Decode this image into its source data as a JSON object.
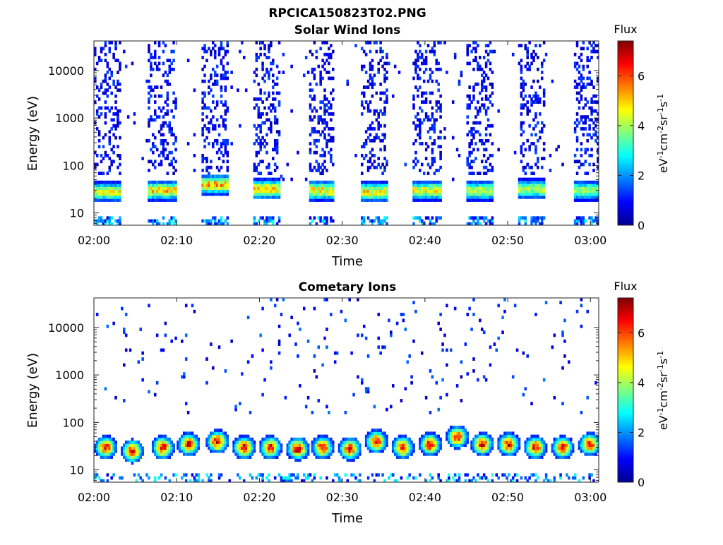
{
  "figure_title": "RPCICA150823T02.PNG",
  "chart_data": [
    {
      "type": "heatmap",
      "title": "Solar Wind Ions",
      "xlabel": "Time",
      "ylabel": "Energy (eV)",
      "x_ticks": [
        "02:00",
        "02:10",
        "02:20",
        "02:30",
        "02:40",
        "02:50",
        "03:00"
      ],
      "xlim_minutes": [
        0,
        61
      ],
      "y_ticks": [
        10,
        100,
        1000,
        10000
      ],
      "y_tick_labels": [
        "10",
        "100",
        "1000",
        "10000"
      ],
      "ylim": [
        5.5,
        42000
      ],
      "y_scale": "log",
      "colorbar": {
        "title": "Flux",
        "label": "eV-1cm-2sr-1s-1",
        "range": [
          0,
          7.4
        ],
        "ticks": [
          "0",
          "2",
          "4",
          "6"
        ],
        "colormap": "jet"
      },
      "bursts": [
        {
          "start_min": 0.0,
          "end_min": 3.2,
          "peak_energy_ev": 28,
          "peak_flux": 4.8
        },
        {
          "start_min": 6.5,
          "end_min": 9.8,
          "peak_energy_ev": 30,
          "peak_flux": 5.3
        },
        {
          "start_min": 12.8,
          "end_min": 16.2,
          "peak_energy_ev": 40,
          "peak_flux": 5.6
        },
        {
          "start_min": 19.2,
          "end_min": 22.5,
          "peak_energy_ev": 32,
          "peak_flux": 5.4
        },
        {
          "start_min": 25.8,
          "end_min": 29.0,
          "peak_energy_ev": 30,
          "peak_flux": 5.2
        },
        {
          "start_min": 32.2,
          "end_min": 35.5,
          "peak_energy_ev": 28,
          "peak_flux": 5.0
        },
        {
          "start_min": 38.5,
          "end_min": 41.8,
          "peak_energy_ev": 30,
          "peak_flux": 4.9
        },
        {
          "start_min": 44.8,
          "end_min": 48.2,
          "peak_energy_ev": 30,
          "peak_flux": 4.6
        },
        {
          "start_min": 51.2,
          "end_min": 54.5,
          "peak_energy_ev": 32,
          "peak_flux": 4.5
        },
        {
          "start_min": 57.8,
          "end_min": 61.0,
          "peak_energy_ev": 30,
          "peak_flux": 4.4
        }
      ]
    },
    {
      "type": "heatmap",
      "title": "Cometary Ions",
      "xlabel": "Time",
      "ylabel": "Energy (eV)",
      "x_ticks": [
        "02:00",
        "02:10",
        "02:20",
        "02:30",
        "02:40",
        "02:50",
        "03:00"
      ],
      "xlim_minutes": [
        0,
        61
      ],
      "y_ticks": [
        10,
        100,
        1000,
        10000
      ],
      "y_tick_labels": [
        "10",
        "100",
        "1000",
        "10000"
      ],
      "ylim": [
        5.5,
        42000
      ],
      "y_scale": "log",
      "colorbar": {
        "title": "Flux",
        "label": "eV-1cm-2sr-1s-1",
        "range": [
          0,
          7.4
        ],
        "ticks": [
          "0",
          "2",
          "4",
          "6"
        ],
        "colormap": "jet"
      },
      "bursts": [
        {
          "center_min": 1.3,
          "peak_energy_ev": 30,
          "peak_flux": 6.8
        },
        {
          "center_min": 4.5,
          "peak_energy_ev": 25,
          "peak_flux": 6.9
        },
        {
          "center_min": 8.2,
          "peak_energy_ev": 30,
          "peak_flux": 7.0
        },
        {
          "center_min": 11.3,
          "peak_energy_ev": 35,
          "peak_flux": 6.9
        },
        {
          "center_min": 14.8,
          "peak_energy_ev": 40,
          "peak_flux": 7.1
        },
        {
          "center_min": 18.0,
          "peak_energy_ev": 30,
          "peak_flux": 7.0
        },
        {
          "center_min": 21.2,
          "peak_energy_ev": 30,
          "peak_flux": 6.9
        },
        {
          "center_min": 24.5,
          "peak_energy_ev": 28,
          "peak_flux": 7.1
        },
        {
          "center_min": 27.5,
          "peak_energy_ev": 30,
          "peak_flux": 6.9
        },
        {
          "center_min": 30.8,
          "peak_energy_ev": 28,
          "peak_flux": 6.9
        },
        {
          "center_min": 34.0,
          "peak_energy_ev": 40,
          "peak_flux": 7.0
        },
        {
          "center_min": 37.2,
          "peak_energy_ev": 30,
          "peak_flux": 6.8
        },
        {
          "center_min": 40.5,
          "peak_energy_ev": 35,
          "peak_flux": 6.9
        },
        {
          "center_min": 43.8,
          "peak_energy_ev": 50,
          "peak_flux": 6.6
        },
        {
          "center_min": 46.8,
          "peak_energy_ev": 35,
          "peak_flux": 6.8
        },
        {
          "center_min": 50.0,
          "peak_energy_ev": 35,
          "peak_flux": 7.0
        },
        {
          "center_min": 53.2,
          "peak_energy_ev": 30,
          "peak_flux": 6.9
        },
        {
          "center_min": 56.5,
          "peak_energy_ev": 30,
          "peak_flux": 6.8
        },
        {
          "center_min": 59.8,
          "peak_energy_ev": 35,
          "peak_flux": 6.8
        }
      ]
    }
  ]
}
